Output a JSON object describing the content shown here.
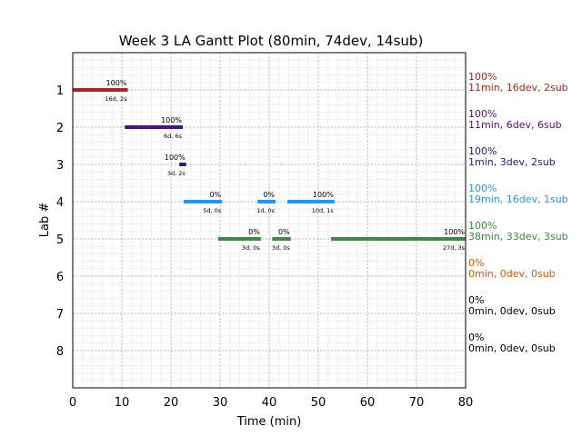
{
  "chart_data": {
    "type": "gantt",
    "title": "Week 3 LA Gantt Plot (80min, 74dev, 14sub)",
    "xlabel": "Time (min)",
    "ylabel": "Lab #",
    "xlim": [
      0,
      80
    ],
    "ylim": [
      9,
      0
    ],
    "xticks": [
      0,
      10,
      20,
      30,
      40,
      50,
      60,
      70,
      80
    ],
    "yticks": [
      1,
      2,
      3,
      4,
      5,
      6,
      7,
      8
    ],
    "grid": true,
    "labs": [
      {
        "lab": 1,
        "color": "#b22222",
        "summary_pct": "100%",
        "summary": "11min, 16dev, 2sub",
        "bars": [
          {
            "start": 0,
            "end": 11.2,
            "pct": "100%",
            "detail": "16d, 2s"
          }
        ]
      },
      {
        "lab": 2,
        "color": "#4b0f8c",
        "summary_pct": "100%",
        "summary": "11min, 6dev, 6sub",
        "bars": [
          {
            "start": 10.6,
            "end": 22.4,
            "pct": "100%",
            "detail": "6d, 6s"
          }
        ]
      },
      {
        "lab": 3,
        "color": "#1a237e",
        "summary_pct": "100%",
        "summary": "1min, 3dev, 2sub",
        "bars": [
          {
            "start": 21.7,
            "end": 23.1,
            "pct": "100%",
            "detail": "3d, 2s"
          }
        ]
      },
      {
        "lab": 4,
        "color": "#2196f3",
        "summary_pct": "100%",
        "summary": "19min, 16dev, 1sub",
        "bars": [
          {
            "start": 22.6,
            "end": 30.4,
            "pct": "0%",
            "detail": "5d, 0s"
          },
          {
            "start": 37.6,
            "end": 41.3,
            "pct": "0%",
            "detail": "1d, 0s"
          },
          {
            "start": 43.7,
            "end": 53.3,
            "pct": "100%",
            "detail": "10d, 1s"
          }
        ]
      },
      {
        "lab": 5,
        "color": "#388e3c",
        "summary_pct": "100%",
        "summary": "38min, 33dev, 3sub",
        "bars": [
          {
            "start": 29.6,
            "end": 38.3,
            "pct": "0%",
            "detail": "3d, 0s"
          },
          {
            "start": 40.6,
            "end": 44.4,
            "pct": "0%",
            "detail": "3d, 0s"
          },
          {
            "start": 52.6,
            "end": 80,
            "pct": "100%",
            "detail": "27d, 3s"
          }
        ]
      },
      {
        "lab": 6,
        "color": "#e65100",
        "summary_pct": "0%",
        "summary": "0min, 0dev, 0sub",
        "bars": []
      },
      {
        "lab": 7,
        "color": "#000000",
        "summary_pct": "0%",
        "summary": "0min, 0dev, 0sub",
        "bars": []
      },
      {
        "lab": 8,
        "color": "#000000",
        "summary_pct": "0%",
        "summary": "0min, 0dev, 0sub",
        "bars": []
      }
    ]
  }
}
